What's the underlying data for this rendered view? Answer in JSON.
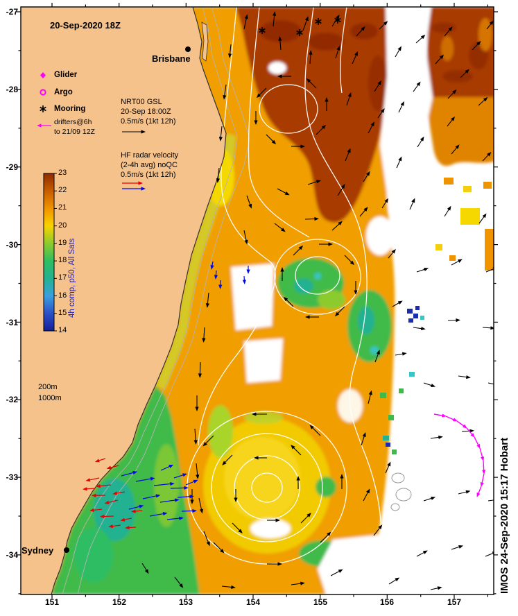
{
  "map_title": {
    "datetime": "20-Sep-2020 18Z"
  },
  "cities": {
    "brisbane": "Brisbane",
    "sydney": "Sydney"
  },
  "legend": {
    "glider": "Glider",
    "argo": "Argo",
    "mooring": "Mooring",
    "drifters_line1": "drifters@6h",
    "drifters_line2": "to 21/09 12Z"
  },
  "vector_key_nrt": {
    "line1": "NRT00 GSL",
    "line2": "20-Sep 18:00Z",
    "line3": "0.5m/s (1kt 12h)"
  },
  "vector_key_hf": {
    "line1": "HF radar velocity",
    "line2": "(2-4h avg) noQC",
    "line3": "0.5m/s (1kt 12h)"
  },
  "colorbar": {
    "label": "4h comp, p50, All Sats",
    "ticks": [
      "23",
      "22",
      "21",
      "20",
      "19",
      "18",
      "17",
      "16",
      "15",
      "14"
    ],
    "colors_top_to_bottom": [
      "#8f2a00",
      "#c65d00",
      "#ef9400",
      "#f8d300",
      "#8ccb2e",
      "#2fbd62",
      "#23b191",
      "#3a9fdc",
      "#2b50c8",
      "#141e96"
    ]
  },
  "isobath_labels": {
    "l200": "200m",
    "l1000": "1000m"
  },
  "axes": {
    "x_ticks": [
      "151",
      "152",
      "153",
      "154",
      "155",
      "156",
      "157"
    ],
    "y_ticks": [
      "-27",
      "-28",
      "-29",
      "-30",
      "-31",
      "-32",
      "-33",
      "-34"
    ]
  },
  "credit": "IMOS 24-Sep-2020 15:17 Hobart",
  "palette": {
    "land": "#f5c28c",
    "drifter": "#ff00ff",
    "hf_blue": "#0008e0",
    "hf_red": "#e80000",
    "current_arrow": "#000000",
    "ssh_contour": "#ffffff",
    "bathy_contour": "#b4b4b4"
  }
}
